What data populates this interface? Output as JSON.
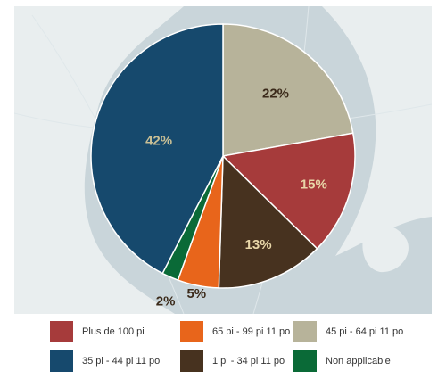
{
  "chart_data": {
    "type": "pie",
    "title": "",
    "slices": [
      {
        "label": "45 pi - 64 pi 11 po",
        "value": 22,
        "data_label": "22%",
        "color": "#b7b39a",
        "label_color": "#3b2a1a"
      },
      {
        "label": "Plus de 100 pi",
        "value": 15,
        "data_label": "15%",
        "color": "#a63b3b",
        "label_color": "#e8d6a8"
      },
      {
        "label": "1 pi - 34 pi 11 po",
        "value": 13,
        "data_label": "13%",
        "color": "#47321f",
        "label_color": "#e8d6a8"
      },
      {
        "label": "65 pi - 99 pi 11 po",
        "value": 5,
        "data_label": "5%",
        "color": "#e8651b",
        "label_color": "#3b2a1a"
      },
      {
        "label": "Non applicable",
        "value": 2,
        "data_label": "2%",
        "color": "#0a6a37",
        "label_color": "#3b2a1a"
      },
      {
        "label": "35 pi - 44 pi 11 po",
        "value": 42,
        "data_label": "42%",
        "color": "#16496d",
        "label_color": "#c9bf95"
      }
    ],
    "legend": {
      "placement": "bottom",
      "items": [
        {
          "label": "Plus de 100 pi",
          "color": "#a63b3b"
        },
        {
          "label": "65 pi - 99 pi 11 po",
          "color": "#e8651b"
        },
        {
          "label": "45 pi - 64 pi 11 po",
          "color": "#b7b39a"
        },
        {
          "label": "35 pi - 44 pi 11 po",
          "color": "#16496d"
        },
        {
          "label": "1 pi - 34 pi 11 po",
          "color": "#47321f"
        },
        {
          "label": "Non applicable",
          "color": "#0a6a37"
        }
      ]
    }
  },
  "background": {
    "sea_color": "#c9d5da",
    "land_color": "#e9eeef"
  }
}
